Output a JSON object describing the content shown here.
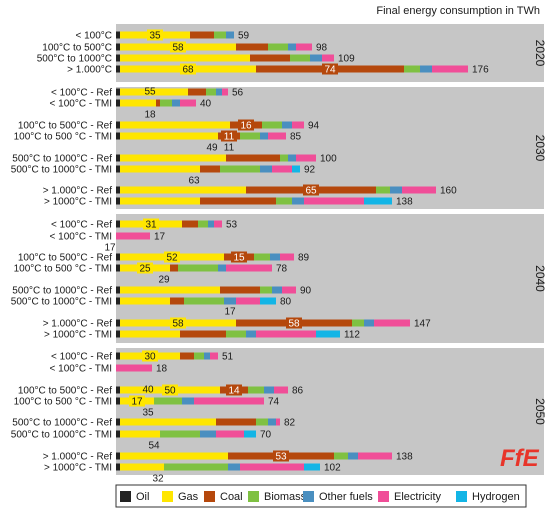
{
  "chart_data": {
    "type": "bar",
    "orientation": "horizontal",
    "stacked": true,
    "title": "Final energy consumption in TWh",
    "legend_position": "bottom",
    "carriers": [
      "Oil",
      "Gas",
      "Coal",
      "Biomass",
      "Other fuels",
      "Electricity",
      "Hydrogen"
    ],
    "colors": {
      "Oil": "#222222",
      "Gas": "#ffe600",
      "Coal": "#b5480c",
      "Biomass": "#7fc142",
      "Other fuels": "#4a8fc0",
      "Electricity": "#f04e98",
      "Hydrogen": "#13b5e6"
    },
    "year_groups": [
      {
        "year": "2020",
        "bars": [
          {
            "label": "< 100°C",
            "segments": [
              2,
              35,
              12,
              6,
              4,
              0,
              0
            ],
            "total": "59",
            "labels": [
              {
                "i": 1,
                "text": "35"
              }
            ]
          },
          {
            "label": "100°C to 500°C",
            "segments": [
              2,
              58,
              16,
              10,
              4,
              8,
              0
            ],
            "total": "98",
            "labels": [
              {
                "i": 1,
                "text": "58"
              }
            ]
          },
          {
            "label": "500°C to 1000°C",
            "segments": [
              2,
              65,
              20,
              10,
              6,
              6,
              0
            ],
            "total": "109",
            "labels": []
          },
          {
            "label": "> 1.000°C",
            "segments": [
              2,
              68,
              74,
              8,
              6,
              18,
              0
            ],
            "total": "176",
            "labels": [
              {
                "i": 1,
                "text": "68"
              },
              {
                "i": 2,
                "text": "74"
              }
            ]
          }
        ]
      },
      {
        "year": "2030",
        "bars": [
          {
            "label": "< 100°C - Ref",
            "segments": [
              2,
              34,
              9,
              5,
              3,
              3,
              0
            ],
            "total": "56",
            "labels": []
          },
          {
            "label": "< 100°C - TMI",
            "segments": [
              2,
              18,
              2,
              6,
              4,
              8,
              0
            ],
            "total": "40",
            "labels": [],
            "above": "55",
            "below": "18"
          },
          {
            "label": "100°C to 500°C - Ref",
            "segments": [
              2,
              55,
              16,
              10,
              5,
              6,
              0
            ],
            "total": "94",
            "labels": [
              {
                "i": 2,
                "text": "16"
              }
            ]
          },
          {
            "label": "100°C to 500 °C - TMI",
            "segments": [
              2,
              49,
              11,
              10,
              4,
              9,
              0
            ],
            "total": "85",
            "labels": [
              {
                "i": 2,
                "text": "11"
              }
            ],
            "below": "49",
            "below_right": "11"
          },
          {
            "label": "500°C to 1000°C - Ref",
            "segments": [
              2,
              53,
              27,
              4,
              4,
              10,
              0
            ],
            "total": "100",
            "labels": []
          },
          {
            "label": "500°C to 1000°C - TMI",
            "segments": [
              2,
              40,
              10,
              20,
              6,
              10,
              4
            ],
            "total": "92",
            "labels": [],
            "below": "63"
          },
          {
            "label": "> 1.000°C - Ref",
            "segments": [
              2,
              63,
              65,
              7,
              6,
              17,
              0
            ],
            "total": "160",
            "labels": [
              {
                "i": 2,
                "text": "65"
              }
            ]
          },
          {
            "label": "> 1000°C - TMI",
            "segments": [
              2,
              40,
              38,
              8,
              6,
              30,
              14
            ],
            "total": "138",
            "labels": []
          }
        ]
      },
      {
        "year": "2040",
        "bars": [
          {
            "label": "< 100°C - Ref",
            "segments": [
              2,
              31,
              8,
              5,
              3,
              4,
              0
            ],
            "total": "53",
            "labels": [
              {
                "i": 1,
                "text": "31"
              }
            ]
          },
          {
            "label": "< 100°C - TMI",
            "segments": [
              0,
              0,
              0,
              0,
              0,
              17,
              0
            ],
            "total": "17",
            "labels": [],
            "below": "17"
          },
          {
            "label": "100°C to 500°C - Ref",
            "segments": [
              2,
              52,
              15,
              8,
              5,
              7,
              0
            ],
            "total": "89",
            "labels": [
              {
                "i": 1,
                "text": "52"
              },
              {
                "i": 2,
                "text": "15"
              }
            ]
          },
          {
            "label": "100°C to 500 °C - TMI",
            "segments": [
              2,
              25,
              4,
              20,
              4,
              23,
              0
            ],
            "total": "78",
            "labels": [
              {
                "i": 1,
                "text": "25"
              }
            ],
            "below": "29"
          },
          {
            "label": "500°C to 1000°C - Ref",
            "segments": [
              2,
              50,
              20,
              6,
              5,
              7,
              0
            ],
            "total": "90",
            "labels": []
          },
          {
            "label": "500°C to 1000°C - TMI",
            "segments": [
              2,
              25,
              7,
              20,
              6,
              12,
              8
            ],
            "total": "80",
            "labels": []
          },
          {
            "label": "> 1.000°C - Ref",
            "segments": [
              2,
              58,
              58,
              6,
              5,
              18,
              0
            ],
            "total": "147",
            "labels": [
              {
                "i": 1,
                "text": "58"
              },
              {
                "i": 2,
                "text": "58"
              }
            ],
            "above": "17"
          },
          {
            "label": "> 1000°C - TMI",
            "segments": [
              2,
              30,
              23,
              10,
              5,
              30,
              12
            ],
            "total": "112",
            "labels": []
          }
        ]
      },
      {
        "year": "2050",
        "bars": [
          {
            "label": "< 100°C - Ref",
            "segments": [
              2,
              30,
              7,
              5,
              3,
              4,
              0
            ],
            "total": "51",
            "labels": [
              {
                "i": 1,
                "text": "30"
              }
            ]
          },
          {
            "label": "< 100°C - TMI",
            "segments": [
              0,
              0,
              0,
              0,
              0,
              18,
              0
            ],
            "total": "18",
            "labels": []
          },
          {
            "label": "100°C to 500°C - Ref",
            "segments": [
              2,
              50,
              14,
              8,
              5,
              7,
              0
            ],
            "total": "86",
            "labels": [
              {
                "i": 1,
                "text": "50"
              },
              {
                "i": 2,
                "text": "14"
              }
            ]
          },
          {
            "label": "100°C to 500 °C - TMI",
            "segments": [
              2,
              17,
              0,
              14,
              6,
              35,
              0
            ],
            "total": "74",
            "labels": [
              {
                "i": 1,
                "text": "17"
              }
            ],
            "above": "40",
            "below": "35"
          },
          {
            "label": "500°C to 1000°C - Ref",
            "segments": [
              2,
              48,
              20,
              6,
              4,
              2,
              0
            ],
            "total": "82",
            "labels": []
          },
          {
            "label": "500°C to 1000°C - TMI",
            "segments": [
              2,
              20,
              0,
              20,
              8,
              14,
              6
            ],
            "total": "70",
            "labels": [],
            "below": "54"
          },
          {
            "label": "> 1.000°C - Ref",
            "segments": [
              2,
              54,
              53,
              7,
              5,
              17,
              0
            ],
            "total": "138",
            "labels": [
              {
                "i": 2,
                "text": "53"
              }
            ]
          },
          {
            "label": "> 1000°C - TMI",
            "segments": [
              2,
              22,
              0,
              32,
              6,
              32,
              8
            ],
            "total": "102",
            "labels": [],
            "below": "32"
          }
        ]
      }
    ]
  }
}
